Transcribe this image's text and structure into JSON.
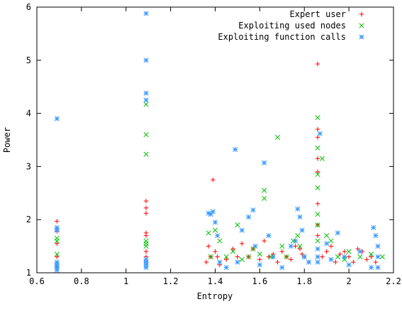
{
  "chart_data": {
    "type": "scatter",
    "title": "",
    "xlabel": "Entropy",
    "ylabel": "Power",
    "xlim": [
      0.6,
      2.2
    ],
    "ylim": [
      1,
      6
    ],
    "x_ticks": [
      "0.6",
      "0.8",
      "1",
      "1.2",
      "1.4",
      "1.6",
      "1.8",
      "2",
      "2.2"
    ],
    "y_ticks": [
      "1",
      "2",
      "3",
      "4",
      "5",
      "6"
    ],
    "grid": false,
    "legend_position": "top-right",
    "series": [
      {
        "name": "Expert user",
        "marker": "plus",
        "color": "#ff0000",
        "points": [
          [
            0.69,
            1.97
          ],
          [
            0.69,
            1.78
          ],
          [
            0.69,
            1.55
          ],
          [
            0.69,
            1.3
          ],
          [
            0.69,
            1.12
          ],
          [
            1.09,
            2.35
          ],
          [
            1.09,
            2.22
          ],
          [
            1.09,
            2.12
          ],
          [
            1.09,
            1.75
          ],
          [
            1.09,
            1.7
          ],
          [
            1.09,
            1.4
          ],
          [
            1.09,
            1.3
          ],
          [
            1.09,
            1.2
          ],
          [
            1.36,
            1.2
          ],
          [
            1.37,
            1.5
          ],
          [
            1.38,
            1.3
          ],
          [
            1.39,
            2.75
          ],
          [
            1.4,
            1.4
          ],
          [
            1.41,
            1.3
          ],
          [
            1.42,
            1.15
          ],
          [
            1.45,
            1.25
          ],
          [
            1.48,
            1.45
          ],
          [
            1.5,
            1.3
          ],
          [
            1.52,
            1.55
          ],
          [
            1.55,
            1.3
          ],
          [
            1.57,
            1.45
          ],
          [
            1.6,
            1.25
          ],
          [
            1.62,
            1.6
          ],
          [
            1.64,
            1.3
          ],
          [
            1.66,
            1.35
          ],
          [
            1.68,
            1.2
          ],
          [
            1.7,
            1.4
          ],
          [
            1.72,
            1.3
          ],
          [
            1.74,
            1.25
          ],
          [
            1.76,
            1.5
          ],
          [
            1.78,
            1.45
          ],
          [
            1.79,
            1.35
          ],
          [
            1.8,
            1.3
          ],
          [
            1.82,
            1.2
          ],
          [
            1.86,
            4.93
          ],
          [
            1.86,
            3.7
          ],
          [
            1.86,
            3.55
          ],
          [
            1.86,
            3.15
          ],
          [
            1.86,
            2.9
          ],
          [
            1.86,
            2.3
          ],
          [
            1.86,
            1.9
          ],
          [
            1.86,
            1.7
          ],
          [
            1.88,
            1.3
          ],
          [
            1.9,
            1.4
          ],
          [
            1.92,
            1.5
          ],
          [
            1.94,
            1.2
          ],
          [
            1.96,
            1.35
          ],
          [
            1.98,
            1.4
          ],
          [
            2.0,
            1.3
          ],
          [
            2.02,
            1.2
          ],
          [
            2.04,
            1.45
          ],
          [
            2.06,
            1.4
          ],
          [
            2.08,
            1.25
          ],
          [
            2.1,
            1.3
          ],
          [
            2.12,
            1.2
          ]
        ]
      },
      {
        "name": "Exploiting used nodes",
        "marker": "cross",
        "color": "#00c000",
        "points": [
          [
            0.69,
            1.65
          ],
          [
            0.69,
            1.6
          ],
          [
            0.69,
            1.35
          ],
          [
            1.09,
            4.17
          ],
          [
            1.09,
            3.6
          ],
          [
            1.09,
            3.23
          ],
          [
            1.09,
            1.6
          ],
          [
            1.09,
            1.55
          ],
          [
            1.09,
            1.5
          ],
          [
            1.37,
            1.75
          ],
          [
            1.38,
            1.3
          ],
          [
            1.4,
            1.8
          ],
          [
            1.42,
            1.6
          ],
          [
            1.45,
            1.3
          ],
          [
            1.48,
            1.4
          ],
          [
            1.5,
            1.9
          ],
          [
            1.52,
            1.25
          ],
          [
            1.55,
            1.3
          ],
          [
            1.57,
            1.45
          ],
          [
            1.6,
            1.35
          ],
          [
            1.62,
            2.55
          ],
          [
            1.62,
            2.4
          ],
          [
            1.65,
            1.3
          ],
          [
            1.68,
            3.55
          ],
          [
            1.7,
            1.5
          ],
          [
            1.72,
            1.3
          ],
          [
            1.75,
            1.6
          ],
          [
            1.77,
            1.7
          ],
          [
            1.78,
            1.5
          ],
          [
            1.8,
            1.3
          ],
          [
            1.86,
            3.92
          ],
          [
            1.86,
            3.35
          ],
          [
            1.86,
            2.85
          ],
          [
            1.86,
            2.6
          ],
          [
            1.86,
            2.1
          ],
          [
            1.86,
            1.9
          ],
          [
            1.86,
            1.6
          ],
          [
            1.88,
            3.15
          ],
          [
            1.9,
            1.7
          ],
          [
            1.92,
            1.6
          ],
          [
            1.95,
            1.3
          ],
          [
            1.98,
            1.25
          ],
          [
            2.0,
            1.4
          ],
          [
            2.05,
            1.3
          ],
          [
            2.1,
            1.35
          ],
          [
            2.15,
            1.3
          ]
        ]
      },
      {
        "name": "Exploiting function calls",
        "marker": "star",
        "color": "#3399ff",
        "points": [
          [
            0.69,
            3.9
          ],
          [
            0.69,
            1.85
          ],
          [
            0.69,
            1.8
          ],
          [
            0.69,
            1.2
          ],
          [
            0.69,
            1.15
          ],
          [
            0.69,
            1.1
          ],
          [
            0.69,
            1.05
          ],
          [
            1.09,
            5.88
          ],
          [
            1.09,
            5.0
          ],
          [
            1.09,
            4.38
          ],
          [
            1.09,
            4.25
          ],
          [
            1.09,
            1.25
          ],
          [
            1.09,
            1.2
          ],
          [
            1.09,
            1.15
          ],
          [
            1.09,
            1.1
          ],
          [
            1.37,
            2.12
          ],
          [
            1.38,
            2.1
          ],
          [
            1.39,
            2.15
          ],
          [
            1.4,
            1.95
          ],
          [
            1.41,
            1.7
          ],
          [
            1.42,
            1.2
          ],
          [
            1.45,
            1.1
          ],
          [
            1.49,
            3.32
          ],
          [
            1.5,
            1.2
          ],
          [
            1.52,
            1.8
          ],
          [
            1.55,
            2.05
          ],
          [
            1.57,
            2.18
          ],
          [
            1.58,
            1.5
          ],
          [
            1.6,
            1.15
          ],
          [
            1.62,
            3.07
          ],
          [
            1.64,
            1.7
          ],
          [
            1.66,
            1.3
          ],
          [
            1.7,
            1.1
          ],
          [
            1.74,
            1.5
          ],
          [
            1.76,
            1.6
          ],
          [
            1.77,
            2.2
          ],
          [
            1.78,
            2.05
          ],
          [
            1.79,
            1.8
          ],
          [
            1.8,
            1.3
          ],
          [
            1.82,
            1.2
          ],
          [
            1.86,
            1.45
          ],
          [
            1.86,
            1.3
          ],
          [
            1.86,
            1.2
          ],
          [
            1.87,
            3.62
          ],
          [
            1.9,
            1.55
          ],
          [
            1.92,
            1.25
          ],
          [
            1.95,
            1.75
          ],
          [
            1.98,
            1.3
          ],
          [
            2.0,
            1.15
          ],
          [
            2.05,
            1.4
          ],
          [
            2.1,
            1.1
          ],
          [
            2.11,
            1.85
          ],
          [
            2.12,
            1.7
          ],
          [
            2.13,
            1.5
          ],
          [
            2.13,
            1.3
          ],
          [
            2.13,
            1.1
          ]
        ]
      }
    ]
  }
}
